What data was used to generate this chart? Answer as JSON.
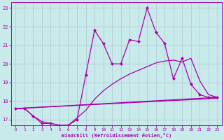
{
  "bg_color": "#c8eaea",
  "grid_color": "#b0c8d0",
  "line_color": "#aa00aa",
  "xlim": [
    -0.5,
    23.5
  ],
  "ylim": [
    16.7,
    23.3
  ],
  "yticks": [
    17,
    18,
    19,
    20,
    21,
    22,
    23
  ],
  "xticks": [
    0,
    1,
    2,
    3,
    4,
    5,
    6,
    7,
    8,
    9,
    10,
    11,
    12,
    13,
    14,
    15,
    16,
    17,
    18,
    19,
    20,
    21,
    22,
    23
  ],
  "xlabel": "Windchill (Refroidissement éolien,°C)",
  "line1_x": [
    0,
    1,
    2,
    3,
    4,
    5,
    6,
    7,
    8,
    9,
    10,
    11,
    12,
    13,
    14,
    15,
    16,
    17,
    18,
    19,
    20,
    21,
    22,
    23
  ],
  "line1_y": [
    17.6,
    17.6,
    17.2,
    16.8,
    16.8,
    16.7,
    16.7,
    17.0,
    19.4,
    21.8,
    21.1,
    20.0,
    20.0,
    21.3,
    21.2,
    23.0,
    21.7,
    21.1,
    19.2,
    20.3,
    18.9,
    18.35,
    18.2,
    18.2
  ],
  "line2_x": [
    0,
    1,
    2,
    3,
    4,
    5,
    6,
    7,
    8,
    9,
    10,
    11,
    12,
    13,
    14,
    15,
    16,
    17,
    18,
    19,
    20,
    21,
    22,
    23
  ],
  "line2_y": [
    17.6,
    17.6,
    17.2,
    16.9,
    16.8,
    16.7,
    16.7,
    17.1,
    17.5,
    18.1,
    18.55,
    18.9,
    19.2,
    19.45,
    19.65,
    19.85,
    20.05,
    20.15,
    20.2,
    20.1,
    20.3,
    19.1,
    18.35,
    18.2
  ],
  "line3_x": [
    0,
    23
  ],
  "line3_y": [
    17.6,
    18.2
  ],
  "line4_x": [
    0,
    23
  ],
  "line4_y": [
    17.6,
    18.15
  ],
  "markersize": 2.5,
  "linewidth": 0.9
}
